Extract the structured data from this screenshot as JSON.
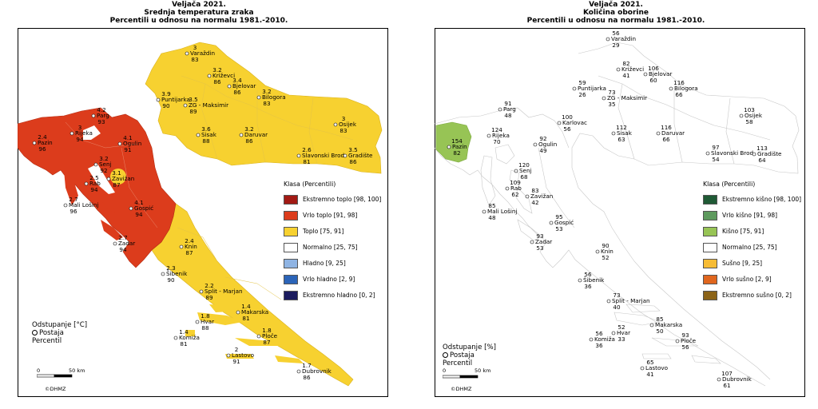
{
  "left": {
    "title": [
      "Veljača 2021.",
      "Srednja temperatura zraka",
      "Percentili u odnosu na normalu 1981.-2010."
    ],
    "legend_title": "Klasa (Percentili)",
    "legend": [
      {
        "label": "Ekstremno toplo [98, 100]",
        "color": "#a21a14"
      },
      {
        "label": "Vrlo toplo [91, 98]",
        "color": "#dc3c1c"
      },
      {
        "label": "Toplo [75, 91]",
        "color": "#f7d130"
      },
      {
        "label": "Normalno [25, 75]",
        "color": "#ffffff"
      },
      {
        "label": "Hladno [9, 25]",
        "color": "#8fb4e3"
      },
      {
        "label": "Vrlo hladno [2, 9]",
        "color": "#2b64b8"
      },
      {
        "label": "Ekstremno hladno [0, 2]",
        "color": "#1b1b5e"
      }
    ],
    "note": [
      "Odstupanje [°C]",
      "Postaja",
      "Percentil"
    ],
    "scale": {
      "zero": "0",
      "dist": "50 km"
    },
    "copyright": "©DHMZ",
    "stations": [
      {
        "name": "Varaždin",
        "dev": "3",
        "perc": "83"
      },
      {
        "name": "Križevci",
        "dev": "3.2",
        "perc": "86"
      },
      {
        "name": "Bjelovar",
        "dev": "3.4",
        "perc": "86"
      },
      {
        "name": "Puntijarka",
        "dev": "3.9",
        "perc": "90"
      },
      {
        "name": "ZG - Maksimir",
        "dev": "3.5",
        "perc": "89"
      },
      {
        "name": "Bilogora",
        "dev": "3.2",
        "perc": "83"
      },
      {
        "name": "Parg",
        "dev": "4.2",
        "perc": "93"
      },
      {
        "name": "Rijeka",
        "dev": "3",
        "perc": "94"
      },
      {
        "name": "Pazin",
        "dev": "2.4",
        "perc": "96"
      },
      {
        "name": "Ogulin",
        "dev": "4.1",
        "perc": "91"
      },
      {
        "name": "Sisak",
        "dev": "3.6",
        "perc": "88"
      },
      {
        "name": "Daruvar",
        "dev": "3.2",
        "perc": "86"
      },
      {
        "name": "Osijek",
        "dev": "3",
        "perc": "83"
      },
      {
        "name": "Slavonski Brod",
        "dev": "2.6",
        "perc": "81"
      },
      {
        "name": "Gradište",
        "dev": "3.5",
        "perc": "86"
      },
      {
        "name": "Senj",
        "dev": "3.2",
        "perc": "92"
      },
      {
        "name": "Rab",
        "dev": "2.5",
        "perc": "94"
      },
      {
        "name": "Zavižan",
        "dev": "3.1",
        "perc": "87"
      },
      {
        "name": "Mali Lošinj",
        "dev": "2.7",
        "perc": "96"
      },
      {
        "name": "Gospić",
        "dev": "4.1",
        "perc": "94"
      },
      {
        "name": "Zadar",
        "dev": "2.7",
        "perc": "94"
      },
      {
        "name": "Knin",
        "dev": "2.4",
        "perc": "87"
      },
      {
        "name": "Šibenik",
        "dev": "2.3",
        "perc": "90"
      },
      {
        "name": "Split - Marjan",
        "dev": "2.2",
        "perc": "89"
      },
      {
        "name": "Makarska",
        "dev": "1.4",
        "perc": "81"
      },
      {
        "name": "Hvar",
        "dev": "1.8",
        "perc": "88"
      },
      {
        "name": "Komiža",
        "dev": "1.4",
        "perc": "81"
      },
      {
        "name": "Ploče",
        "dev": "1.8",
        "perc": "87"
      },
      {
        "name": "Lastovo",
        "dev": "2",
        "perc": "91"
      },
      {
        "name": "Dubrovnik",
        "dev": "1.7",
        "perc": "86"
      }
    ]
  },
  "right": {
    "title": [
      "Veljača 2021.",
      "Količina oborine",
      "Percentili u odnosu na normalu 1981.-2010."
    ],
    "legend_title": "Klasa (Percentili)",
    "legend": [
      {
        "label": "Ekstremno kišno [98, 100]",
        "color": "#1f5a35"
      },
      {
        "label": "Vrlo kišno [91, 98]",
        "color": "#5e9a5e"
      },
      {
        "label": "Kišno [75, 91]",
        "color": "#97c455"
      },
      {
        "label": "Normalno [25, 75]",
        "color": "#ffffff"
      },
      {
        "label": "Sušno [9, 25]",
        "color": "#f7bc35"
      },
      {
        "label": "Vrlo sušno [2, 9]",
        "color": "#e0661e"
      },
      {
        "label": "Ekstremno sušno [0, 2]",
        "color": "#8c6418"
      }
    ],
    "note": [
      "Odstupanje [%]",
      "Postaja",
      "Percentil"
    ],
    "scale": {
      "zero": "0",
      "dist": "50 km"
    },
    "copyright": "©DHMZ",
    "stations": [
      {
        "name": "Varaždin",
        "dev": "56",
        "perc": "29"
      },
      {
        "name": "Križevci",
        "dev": "82",
        "perc": "41"
      },
      {
        "name": "Bjelovar",
        "dev": "106",
        "perc": "60"
      },
      {
        "name": "Puntijarka",
        "dev": "59",
        "perc": "26"
      },
      {
        "name": "ZG - Maksimir",
        "dev": "73",
        "perc": "35"
      },
      {
        "name": "Bilogora",
        "dev": "116",
        "perc": "66"
      },
      {
        "name": "Parg",
        "dev": "91",
        "perc": "48"
      },
      {
        "name": "Karlovac",
        "dev": "100",
        "perc": "56"
      },
      {
        "name": "Rijeka",
        "dev": "124",
        "perc": "70"
      },
      {
        "name": "Pazin",
        "dev": "154",
        "perc": "82"
      },
      {
        "name": "Ogulin",
        "dev": "92",
        "perc": "49"
      },
      {
        "name": "Sisak",
        "dev": "112",
        "perc": "63"
      },
      {
        "name": "Daruvar",
        "dev": "116",
        "perc": "66"
      },
      {
        "name": "Osijek",
        "dev": "103",
        "perc": "58"
      },
      {
        "name": "Slavonski Brod",
        "dev": "97",
        "perc": "54"
      },
      {
        "name": "Gradište",
        "dev": "113",
        "perc": "64"
      },
      {
        "name": "Senj",
        "dev": "120",
        "perc": "68"
      },
      {
        "name": "Rab",
        "dev": "109",
        "perc": "62"
      },
      {
        "name": "Zavižan",
        "dev": "83",
        "perc": "42"
      },
      {
        "name": "Mali Lošinj",
        "dev": "85",
        "perc": "48"
      },
      {
        "name": "Gospić",
        "dev": "95",
        "perc": "53"
      },
      {
        "name": "Zadar",
        "dev": "93",
        "perc": "53"
      },
      {
        "name": "Knin",
        "dev": "90",
        "perc": "52"
      },
      {
        "name": "Šibenik",
        "dev": "56",
        "perc": "36"
      },
      {
        "name": "Split - Marjan",
        "dev": "73",
        "perc": "40"
      },
      {
        "name": "Makarska",
        "dev": "85",
        "perc": "50"
      },
      {
        "name": "Hvar",
        "dev": "52",
        "perc": "33"
      },
      {
        "name": "Komiža",
        "dev": "56",
        "perc": "36"
      },
      {
        "name": "Ploče",
        "dev": "93",
        "perc": "56"
      },
      {
        "name": "Lastovo",
        "dev": "65",
        "perc": "41"
      },
      {
        "name": "Dubrovnik",
        "dev": "107",
        "perc": "61"
      }
    ]
  }
}
